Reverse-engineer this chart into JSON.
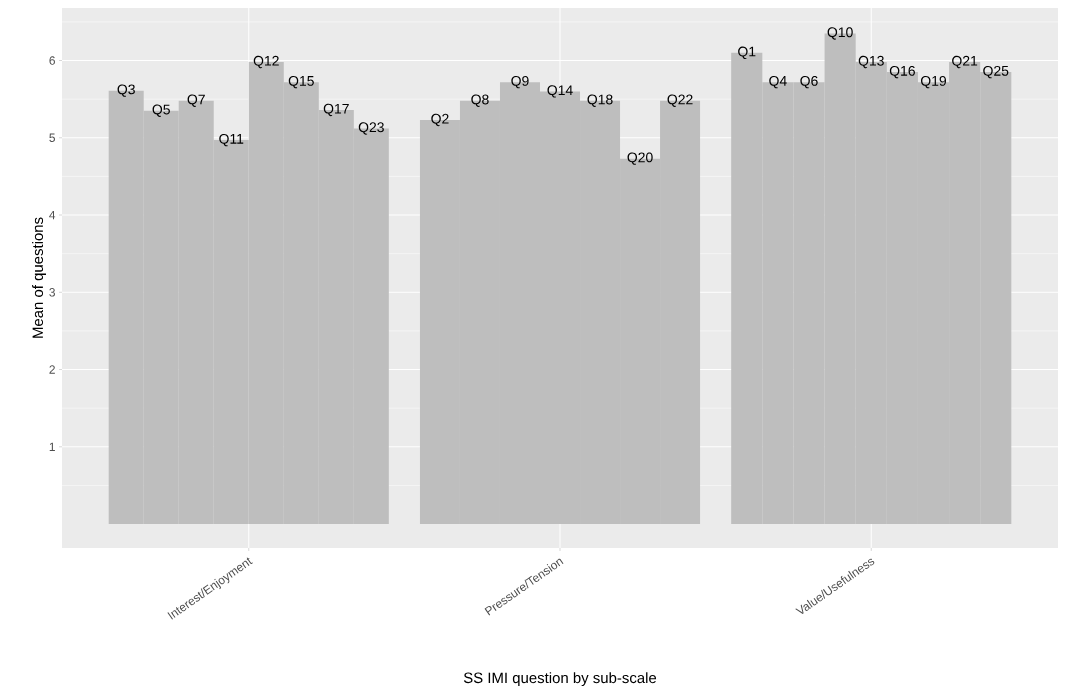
{
  "chart_data": {
    "type": "bar",
    "xlabel": "SS IMI question by sub-scale",
    "ylabel": "Mean of questions",
    "categories": [
      "Interest/Enjoyment",
      "Pressure/Tension",
      "Value/Usefulness"
    ],
    "ylim": [
      -0.31,
      6.68
    ],
    "yticks": [
      1,
      2,
      3,
      4,
      5,
      6
    ],
    "grid": true,
    "series": [
      {
        "name": "Q3",
        "color": "#bebebe",
        "values": [
          5.61,
          null,
          null
        ]
      },
      {
        "name": "Q5",
        "color": "#bebebe",
        "values": [
          5.35,
          null,
          null
        ]
      },
      {
        "name": "Q7",
        "color": "#bebebe",
        "values": [
          5.48,
          null,
          null
        ]
      },
      {
        "name": "Q11",
        "color": "#bebebe",
        "values": [
          4.97,
          null,
          null
        ]
      },
      {
        "name": "Q12",
        "color": "#bebebe",
        "values": [
          5.98,
          null,
          null
        ]
      },
      {
        "name": "Q15",
        "color": "#bebebe",
        "values": [
          5.72,
          null,
          null
        ]
      },
      {
        "name": "Q17",
        "color": "#bebebe",
        "values": [
          5.36,
          null,
          null
        ]
      },
      {
        "name": "Q23",
        "color": "#bebebe",
        "values": [
          5.12,
          null,
          null
        ]
      },
      {
        "name": "Q2",
        "color": "#bebebe",
        "values": [
          null,
          5.23,
          null
        ]
      },
      {
        "name": "Q8",
        "color": "#bebebe",
        "values": [
          null,
          5.48,
          null
        ]
      },
      {
        "name": "Q9",
        "color": "#bebebe",
        "values": [
          null,
          5.72,
          null
        ]
      },
      {
        "name": "Q14",
        "color": "#bebebe",
        "values": [
          null,
          5.6,
          null
        ]
      },
      {
        "name": "Q18",
        "color": "#bebebe",
        "values": [
          null,
          5.48,
          null
        ]
      },
      {
        "name": "Q20",
        "color": "#bebebe",
        "values": [
          null,
          4.73,
          null
        ]
      },
      {
        "name": "Q22",
        "color": "#bebebe",
        "values": [
          null,
          5.48,
          null
        ]
      },
      {
        "name": "Q1",
        "color": "#bebebe",
        "values": [
          null,
          null,
          6.1
        ]
      },
      {
        "name": "Q4",
        "color": "#bebebe",
        "values": [
          null,
          null,
          5.72
        ]
      },
      {
        "name": "Q6",
        "color": "#bebebe",
        "values": [
          null,
          null,
          5.72
        ]
      },
      {
        "name": "Q10",
        "color": "#bebebe",
        "values": [
          null,
          null,
          6.35
        ]
      },
      {
        "name": "Q13",
        "color": "#bebebe",
        "values": [
          null,
          null,
          5.98
        ]
      },
      {
        "name": "Q16",
        "color": "#bebebe",
        "values": [
          null,
          null,
          5.85
        ]
      },
      {
        "name": "Q19",
        "color": "#bebebe",
        "values": [
          null,
          null,
          5.72
        ]
      },
      {
        "name": "Q21",
        "color": "#bebebe",
        "values": [
          null,
          null,
          5.98
        ]
      },
      {
        "name": "Q25",
        "color": "#bebebe",
        "values": [
          null,
          null,
          5.85
        ]
      }
    ]
  }
}
